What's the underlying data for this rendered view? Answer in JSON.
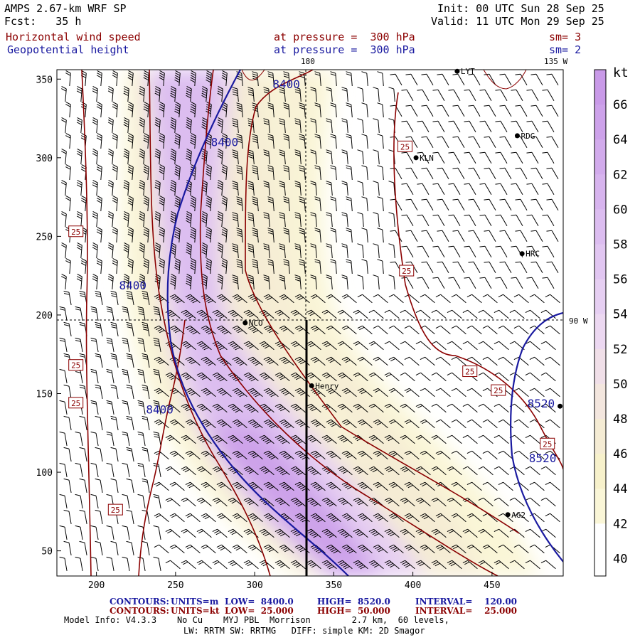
{
  "header": {
    "model": "AMPS 2.67-km WRF SP",
    "forecast": "Fcst:   35 h",
    "init": "Init: 00 UTC Sun 28 Sep 25",
    "valid": "Valid: 11 UTC Mon 29 Sep 25",
    "field1_name": "Horizontal wind speed",
    "field1_level": "at pressure =  300 hPa",
    "field1_sm": "sm= 3",
    "field2_name": "Geopotential height",
    "field2_level": "at pressure =  300 hPa",
    "field2_sm": "sm= 2"
  },
  "map": {
    "meridian_top_label": "180",
    "meridian_right_label": "135 W",
    "parallel_right_label": "90 W",
    "x_ticks": [
      200,
      250,
      300,
      350,
      400,
      450
    ],
    "y_ticks": [
      50,
      100,
      150,
      200,
      250,
      300,
      350
    ],
    "x_range": [
      175,
      495
    ],
    "y_range": [
      34,
      356
    ],
    "stations": [
      {
        "name": "LYT",
        "x": 428,
        "y": 355
      },
      {
        "name": "RDG",
        "x": 466,
        "y": 314
      },
      {
        "name": "KLN",
        "x": 402,
        "y": 300
      },
      {
        "name": "HRC",
        "x": 469,
        "y": 239
      },
      {
        "name": "NCO",
        "x": 294,
        "y": 195
      },
      {
        "name": "Henry",
        "x": 336,
        "y": 155
      },
      {
        "name": "AG2",
        "x": 460,
        "y": 73
      },
      {
        "name": "",
        "x": 493,
        "y": 142
      }
    ],
    "height_contours_units": "m",
    "height_labels": [
      {
        "text": "8400",
        "x": 320,
        "y": 347
      },
      {
        "text": "8400",
        "x": 281,
        "y": 310
      },
      {
        "text": "8400",
        "x": 223,
        "y": 219
      },
      {
        "text": "8400",
        "x": 240,
        "y": 140
      },
      {
        "text": "8520",
        "x": 481,
        "y": 144
      },
      {
        "text": "8520",
        "x": 482,
        "y": 109
      }
    ],
    "speed_labels": [
      {
        "text": "25",
        "x": 395,
        "y": 307
      },
      {
        "text": "25",
        "x": 187,
        "y": 253
      },
      {
        "text": "25",
        "x": 396,
        "y": 228
      },
      {
        "text": "25",
        "x": 187,
        "y": 168
      },
      {
        "text": "25",
        "x": 187,
        "y": 144
      },
      {
        "text": "25",
        "x": 436,
        "y": 164
      },
      {
        "text": "25",
        "x": 454,
        "y": 152
      },
      {
        "text": "25",
        "x": 485,
        "y": 118
      },
      {
        "text": "25",
        "x": 212,
        "y": 76
      }
    ]
  },
  "colorbar": {
    "unit": "kt",
    "labels": [
      "66",
      "64",
      "62",
      "60",
      "58",
      "56",
      "54",
      "52",
      "50",
      "48",
      "46",
      "44",
      "42",
      "40"
    ],
    "colors": [
      "#c99ae8",
      "#cda2ea",
      "#d2abec",
      "#d7b4ee",
      "#dcbdf0",
      "#e1c6f1",
      "#e6cff2",
      "#ecd8f1",
      "#f0dfe8",
      "#f3e6de",
      "#f5ecd4",
      "#f7f1cb",
      "#faf6d7",
      "#ffffff"
    ]
  },
  "footer": {
    "contours1_label": "CONTOURS:",
    "contours1_units": "UNITS=m",
    "contours1_low": "LOW=  8400.0",
    "contours1_high": "HIGH=  8520.0",
    "contours1_interval": "INTERVAL=    120.00",
    "contours2_label": "CONTOURS:",
    "contours2_units": "UNITS=kt",
    "contours2_low": "LOW=  25.000",
    "contours2_high": "HIGH=  50.000",
    "contours2_interval": "INTERVAL=    25.000",
    "model_info": "Model Info: V4.3.3    No Cu    MYJ PBL  Morrison        2.7 km,  60 levels,",
    "physics": "LW: RRTM SW: RRTMG   DIFF: simple KM: 2D Smagor"
  },
  "colors": {
    "height_contour": "#1a1aa0",
    "speed_contour": "#8b0000",
    "coast": "#8b0000"
  }
}
